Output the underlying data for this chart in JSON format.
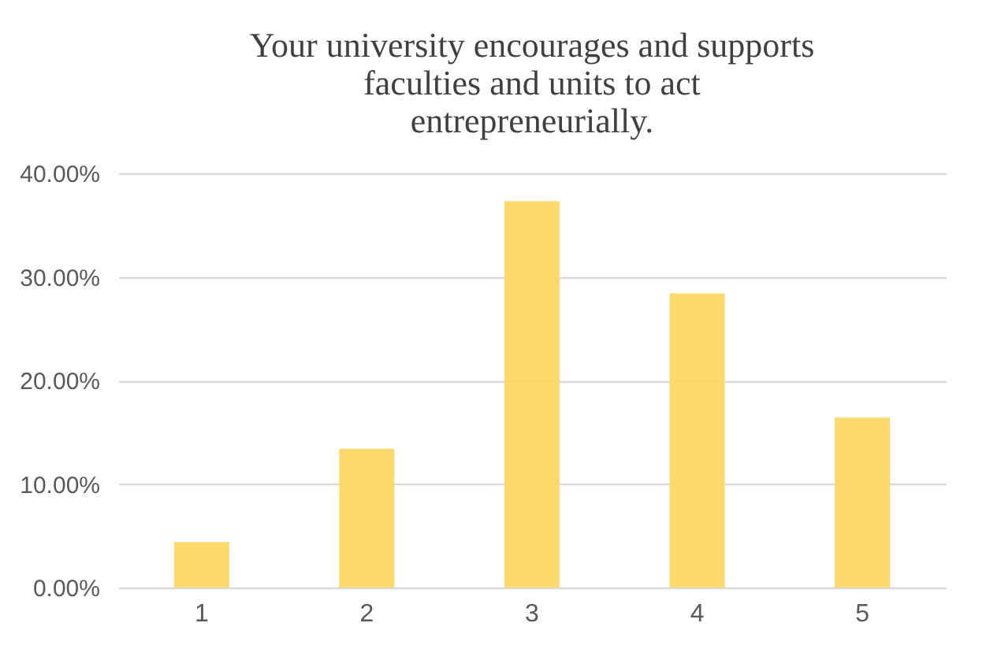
{
  "chart_data": {
    "type": "bar",
    "title": [
      "Your university encourages and supports",
      "faculties and units to act",
      "entrepreneurially."
    ],
    "categories": [
      "1",
      "2",
      "3",
      "4",
      "5"
    ],
    "values": [
      4.4,
      13.4,
      37.3,
      28.4,
      16.4
    ],
    "color": "#fdd766",
    "ylim": [
      0,
      40
    ],
    "yticks": [
      {
        "value": 0,
        "label": "0.00%"
      },
      {
        "value": 10,
        "label": "10.00%"
      },
      {
        "value": 20,
        "label": "20.00%"
      },
      {
        "value": 30,
        "label": "30.00%"
      },
      {
        "value": 40,
        "label": "40.00%"
      }
    ],
    "grid": "y"
  }
}
